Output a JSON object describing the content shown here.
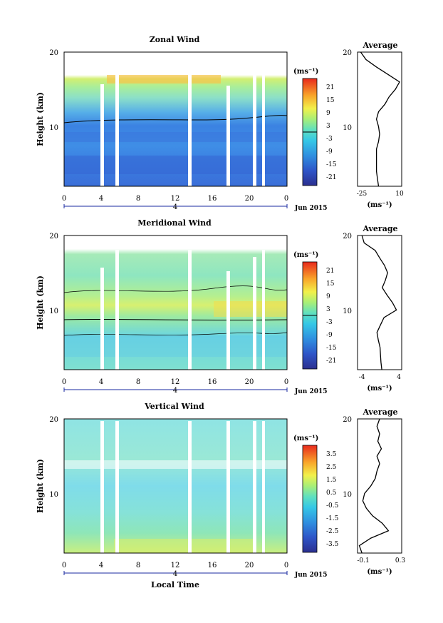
{
  "date_label": "Jun 2015",
  "panels": [
    {
      "title": "Zonal Wind",
      "ylabel": "Height (km)",
      "unit": "(ms⁻¹)",
      "colorbar_ticks": [
        "21",
        "15",
        "9",
        "3",
        "-3",
        "-9",
        "-15",
        "-21"
      ],
      "avg_title": "Average",
      "avg_xticks": [
        "-25",
        "10"
      ],
      "avg_unit": "(ms⁻¹)",
      "date_tick": "4"
    },
    {
      "title": "Meridional Wind",
      "ylabel": "Height (km)",
      "unit": "(ms⁻¹)",
      "colorbar_ticks": [
        "21",
        "15",
        "9",
        "3",
        "-3",
        "-9",
        "-15",
        "-21"
      ],
      "avg_title": "Average",
      "avg_xticks": [
        "-4",
        "4"
      ],
      "avg_unit": "(ms⁻¹)",
      "date_tick": "4"
    },
    {
      "title": "Vertical Wind",
      "ylabel": "Height (km)",
      "unit": "(ms⁻¹)",
      "colorbar_ticks": [
        "3.5",
        "2.5",
        "1.5",
        "0.5",
        "-0.5",
        "-1.5",
        "-2.5",
        "-3.5"
      ],
      "avg_title": "Average",
      "avg_xticks": [
        "-0.1",
        "0.3"
      ],
      "avg_unit": "(ms⁻¹)",
      "date_tick": "4"
    }
  ],
  "xlabel": "Local Time",
  "chart_data": [
    {
      "type": "heatmap",
      "title": "Zonal Wind",
      "xlabel": "",
      "ylabel": "Height (km)",
      "x_ticks": [
        "0",
        "4",
        "8",
        "12",
        "16",
        "20",
        "0"
      ],
      "y_ticks": [
        "10",
        "20"
      ],
      "xlim": [
        0,
        24
      ],
      "ylim": [
        2,
        20
      ],
      "color_range": [
        -24,
        24
      ],
      "profile": {
        "title": "Average",
        "xlim": [
          -30,
          12
        ],
        "ticks": [
          "-25",
          "10"
        ],
        "height": [
          2,
          3,
          4,
          5,
          6,
          7,
          8,
          9,
          10,
          11,
          12,
          13,
          14,
          15,
          16,
          17,
          18,
          19,
          20
        ],
        "value": [
          -10,
          -11,
          -12,
          -12,
          -12,
          -12,
          -10,
          -9,
          -10,
          -12,
          -10,
          -4,
          0,
          6,
          10,
          -1,
          -12,
          -22,
          -27
        ]
      }
    },
    {
      "type": "heatmap",
      "title": "Meridional Wind",
      "xlabel": "",
      "ylabel": "Height (km)",
      "x_ticks": [
        "0",
        "4",
        "8",
        "12",
        "16",
        "20",
        "0"
      ],
      "y_ticks": [
        "10",
        "20"
      ],
      "xlim": [
        0,
        24
      ],
      "ylim": [
        2,
        20
      ],
      "color_range": [
        -24,
        24
      ],
      "profile": {
        "title": "Average",
        "xlim": [
          -5,
          5
        ],
        "ticks": [
          "-4",
          "4"
        ],
        "height": [
          2,
          3,
          4,
          5,
          6,
          7,
          8,
          9,
          10,
          11,
          12,
          13,
          14,
          15,
          16,
          17,
          18,
          19,
          20
        ],
        "value": [
          0.5,
          0.3,
          0.2,
          0.1,
          -0.3,
          -0.6,
          0.2,
          1.0,
          3.8,
          2.9,
          1.7,
          0.6,
          1.3,
          1.8,
          1.1,
          0.0,
          -1.0,
          -3.5,
          -4.0
        ]
      }
    },
    {
      "type": "heatmap",
      "title": "Vertical Wind",
      "xlabel": "Local Time",
      "ylabel": "Height (km)",
      "x_ticks": [
        "0",
        "4",
        "8",
        "12",
        "16",
        "20",
        "0"
      ],
      "y_ticks": [
        "10",
        "20"
      ],
      "xlim": [
        0,
        24
      ],
      "ylim": [
        2,
        20
      ],
      "color_range": [
        -4,
        4
      ],
      "profile": {
        "title": "Average",
        "xlim": [
          -0.2,
          0.3
        ],
        "ticks": [
          "-0.1",
          "0.3"
        ],
        "height": [
          2,
          3,
          4,
          5,
          6,
          7,
          8,
          9,
          10,
          11,
          12,
          13,
          14,
          15,
          16,
          17,
          18,
          19,
          20
        ],
        "value": [
          -0.15,
          -0.18,
          -0.05,
          0.15,
          0.08,
          -0.03,
          -0.1,
          -0.14,
          -0.12,
          -0.05,
          0.0,
          0.02,
          0.05,
          0.02,
          0.07,
          0.03,
          0.05,
          0.02,
          0.05
        ]
      }
    }
  ]
}
